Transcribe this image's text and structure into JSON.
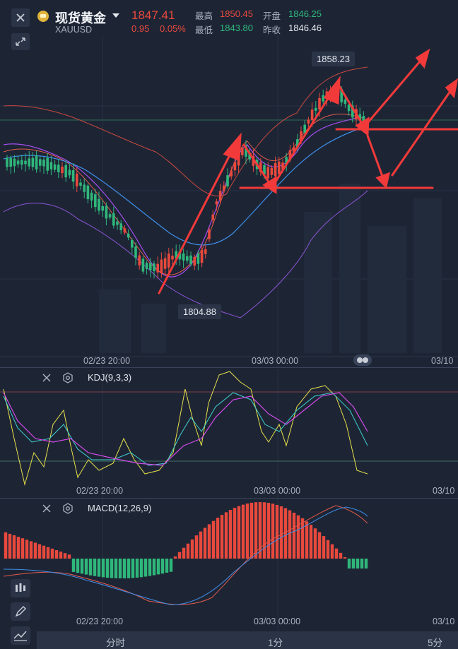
{
  "instrument": {
    "name": "现货黄金",
    "code": "XAUUSD",
    "price": "1847.41",
    "change": "0.95",
    "change_pct": "0.05%",
    "high_label": "最高",
    "high": "1850.45",
    "low_label": "最低",
    "low": "1843.80",
    "open_label": "开盘",
    "open": "1846.25",
    "prev_close_label": "昨收",
    "prev_close": "1846.46"
  },
  "main_chart": {
    "max_tag": "1858.23",
    "min_tag": "1804.88",
    "x_labels": [
      "02/23 20:00",
      "03/03 00:00",
      "03/10"
    ]
  },
  "kdj": {
    "title": "KDJ(9,3,3)",
    "x_labels": [
      "02/23 20:00",
      "03/03 00:00",
      "03/10"
    ]
  },
  "macd": {
    "title": "MACD(12,26,9)",
    "x_labels": [
      "02/23 20:00",
      "03/03 00:00",
      "03/10"
    ]
  },
  "timeframes": [
    "分时",
    "1分",
    "5分"
  ],
  "colors": {
    "up": "#e8493d",
    "down": "#2fb77b",
    "price": "#e8493d",
    "arrow": "#f23a3a",
    "bg": "#1d2535"
  },
  "icons": [
    "close-icon",
    "expand-icon",
    "gold-coin-icon",
    "caret-down-icon",
    "settings-icon",
    "candlestick-icon",
    "pencil-icon",
    "line-chart-icon",
    "toggle-icon"
  ]
}
